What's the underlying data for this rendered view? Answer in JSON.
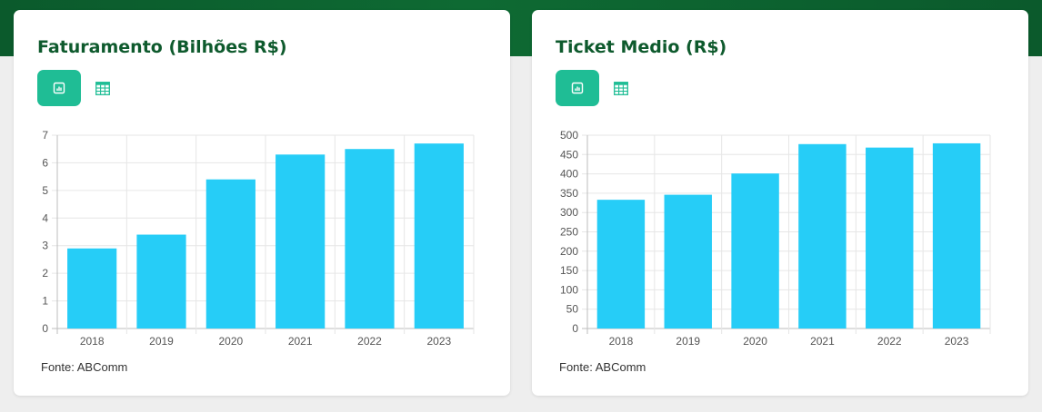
{
  "colors": {
    "header_green": "#0b5a2c",
    "title_green": "#0e5a2d",
    "accent": "#1fbd95",
    "bar": "#26cdf7"
  },
  "cards": [
    {
      "title": "Faturamento (Bilhões R$)",
      "chart_icon": "bar-chart-icon",
      "table_icon": "table-icon",
      "source": "Fonte: ABComm",
      "chart_data": {
        "type": "bar",
        "title": "Faturamento (Bilhões R$)",
        "categories": [
          "2018",
          "2019",
          "2020",
          "2021",
          "2022",
          "2023"
        ],
        "values": [
          2.9,
          3.4,
          5.4,
          6.3,
          6.5,
          6.7
        ],
        "ylim": [
          0,
          7
        ],
        "yticks": [
          "0",
          "1",
          "2",
          "3",
          "4",
          "5",
          "6",
          "7"
        ],
        "grid": true,
        "legend": "none"
      }
    },
    {
      "title": "Ticket Medio (R$)",
      "chart_icon": "bar-chart-icon",
      "table_icon": "table-icon",
      "source": "Fonte: ABComm",
      "chart_data": {
        "type": "bar",
        "title": "Ticket Medio (R$)",
        "categories": [
          "2018",
          "2019",
          "2020",
          "2021",
          "2022",
          "2023"
        ],
        "values": [
          333,
          346,
          401,
          477,
          468,
          479
        ],
        "ylim": [
          0,
          500
        ],
        "yticks": [
          "0",
          "50",
          "100",
          "150",
          "200",
          "250",
          "300",
          "350",
          "400",
          "450",
          "500"
        ],
        "grid": true,
        "legend": "none"
      }
    }
  ]
}
